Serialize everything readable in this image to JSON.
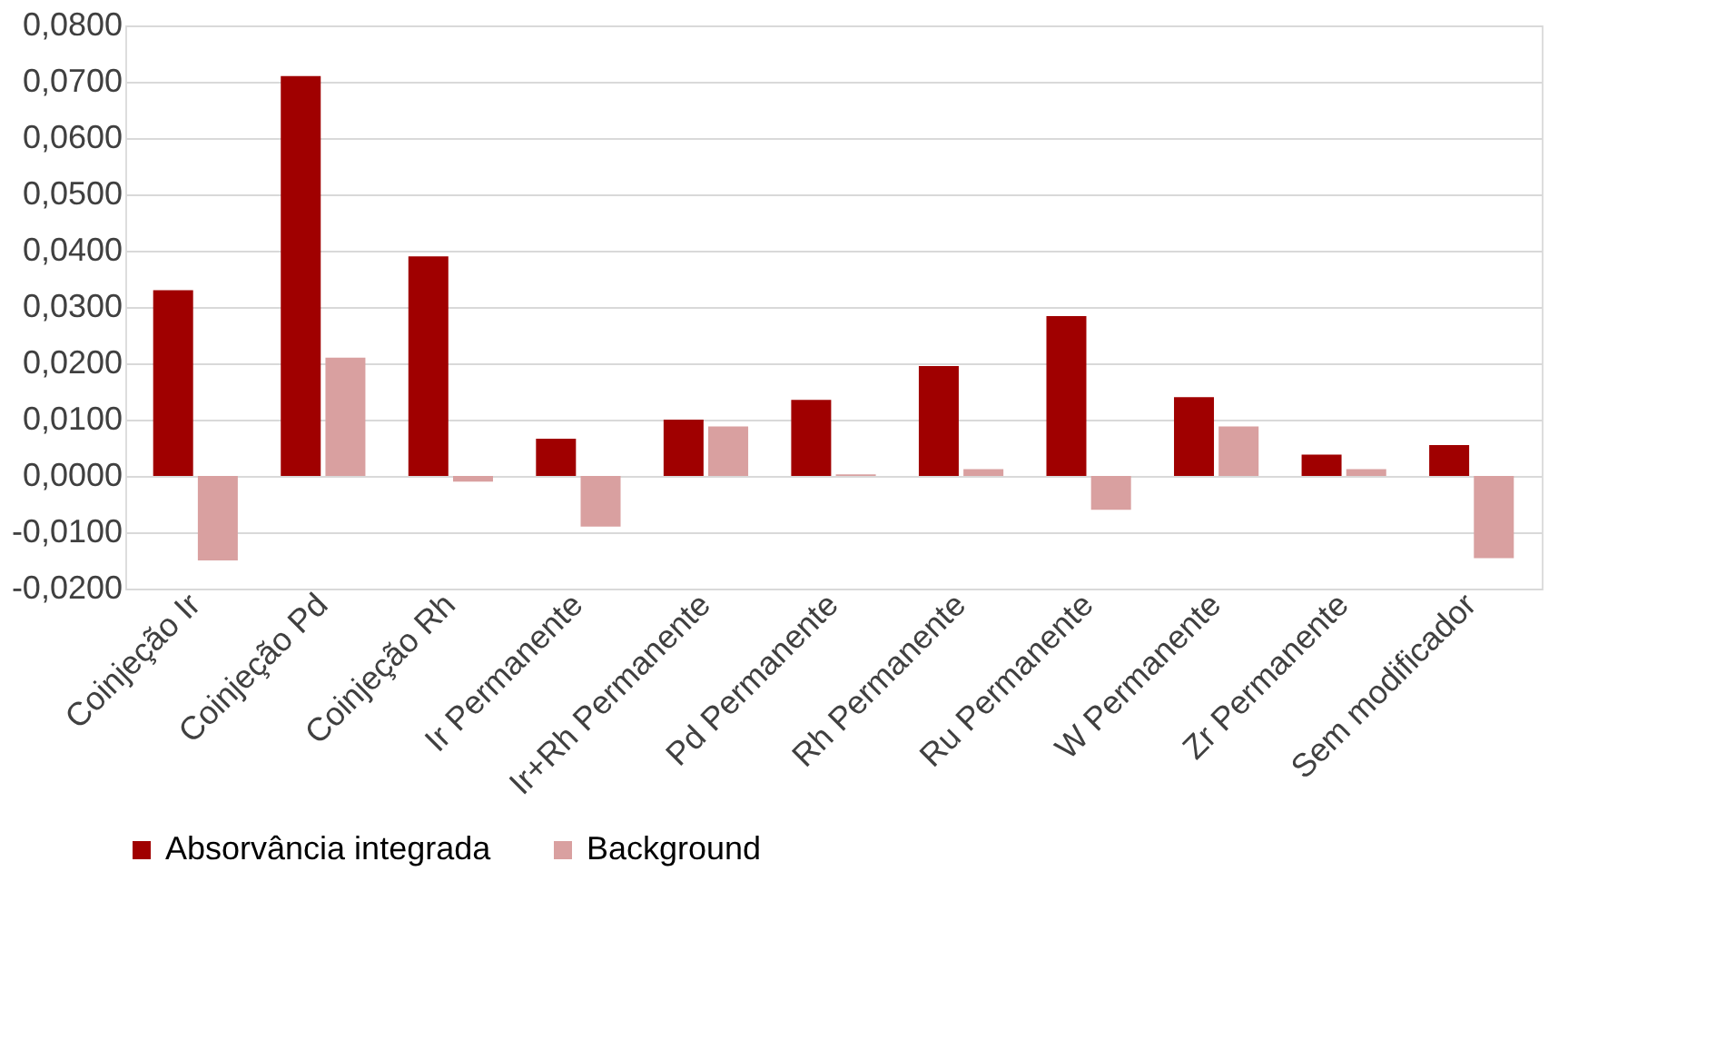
{
  "chart_data": {
    "type": "bar",
    "categories": [
      "Coinjeção Ir",
      "Coinjeção Pd",
      "Coinjeção Rh",
      "Ir Permanente",
      "Ir+Rh Permanente",
      "Pd Permanente",
      "Rh Permanente",
      "Ru Permanente",
      "W Permanente",
      "Zr Permanente",
      "Sem modificador"
    ],
    "series": [
      {
        "name": "Absorvância integrada",
        "color": "#a00000",
        "values": [
          0.033,
          0.071,
          0.039,
          0.0066,
          0.01,
          0.0135,
          0.0195,
          0.0284,
          0.014,
          0.0038,
          0.0055
        ]
      },
      {
        "name": "Background",
        "color": "#d9a0a0",
        "values": [
          -0.015,
          0.021,
          -0.001,
          -0.009,
          0.0088,
          0.0003,
          0.0012,
          -0.006,
          0.0088,
          0.0012,
          -0.0146
        ]
      }
    ],
    "ylim": [
      -0.02,
      0.08
    ],
    "yticks": [
      {
        "value": -0.02,
        "label": "-0,0200"
      },
      {
        "value": -0.01,
        "label": "-0,0100"
      },
      {
        "value": 0,
        "label": "0,0000"
      },
      {
        "value": 0.01,
        "label": "0,0100"
      },
      {
        "value": 0.02,
        "label": "0,0200"
      },
      {
        "value": 0.03,
        "label": "0,0300"
      },
      {
        "value": 0.04,
        "label": "0,0400"
      },
      {
        "value": 0.05,
        "label": "0,0500"
      },
      {
        "value": 0.06,
        "label": "0,0600"
      },
      {
        "value": 0.07,
        "label": "0,0700"
      },
      {
        "value": 0.08,
        "label": "0,0800"
      }
    ],
    "grid": "y",
    "legend": "bottom"
  }
}
